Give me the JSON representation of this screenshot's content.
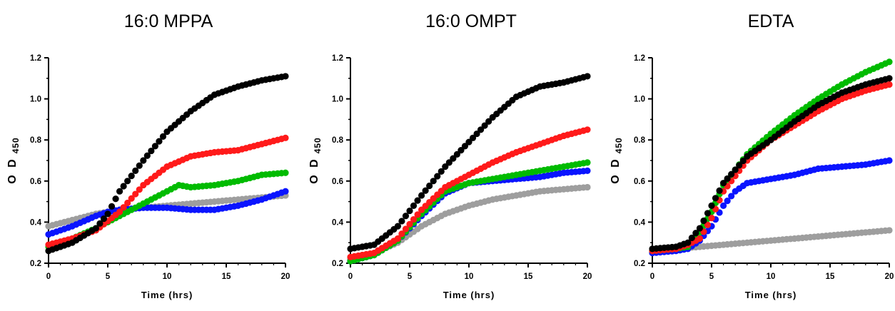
{
  "chart_data": [
    {
      "type": "scatter",
      "title": "16:0 MPPA",
      "xlabel": "Time (hrs)",
      "ylabel": {
        "main": "O D",
        "sub": "450"
      },
      "xlim": [
        0,
        20
      ],
      "ylim": [
        0.2,
        1.2
      ],
      "xticks": [
        "0",
        "5",
        "10",
        "15",
        "20"
      ],
      "yticks": [
        "0.2",
        "0.4",
        "0.6",
        "0.8",
        "1.0",
        "1.2"
      ],
      "series": [
        {
          "color": "#9e9e9e",
          "points": [
            [
              0,
              0.38
            ],
            [
              2,
              0.41
            ],
            [
              4,
              0.44
            ],
            [
              6,
              0.46
            ],
            [
              8,
              0.47
            ],
            [
              10,
              0.48
            ],
            [
              12,
              0.49
            ],
            [
              14,
              0.5
            ],
            [
              16,
              0.51
            ],
            [
              18,
              0.52
            ],
            [
              20,
              0.53
            ]
          ]
        },
        {
          "color": "#0a14ff",
          "points": [
            [
              0,
              0.34
            ],
            [
              2,
              0.38
            ],
            [
              4,
              0.43
            ],
            [
              5,
              0.45
            ],
            [
              6,
              0.46
            ],
            [
              8,
              0.47
            ],
            [
              10,
              0.47
            ],
            [
              12,
              0.46
            ],
            [
              14,
              0.46
            ],
            [
              16,
              0.48
            ],
            [
              18,
              0.51
            ],
            [
              20,
              0.55
            ]
          ]
        },
        {
          "color": "#00bb00",
          "points": [
            [
              0,
              0.28
            ],
            [
              2,
              0.32
            ],
            [
              4,
              0.37
            ],
            [
              6,
              0.43
            ],
            [
              8,
              0.49
            ],
            [
              10,
              0.55
            ],
            [
              11,
              0.58
            ],
            [
              12,
              0.57
            ],
            [
              14,
              0.58
            ],
            [
              16,
              0.6
            ],
            [
              18,
              0.63
            ],
            [
              20,
              0.64
            ]
          ]
        },
        {
          "color": "#ff1a1a",
          "points": [
            [
              0,
              0.29
            ],
            [
              2,
              0.32
            ],
            [
              4,
              0.36
            ],
            [
              6,
              0.45
            ],
            [
              8,
              0.58
            ],
            [
              10,
              0.67
            ],
            [
              12,
              0.72
            ],
            [
              14,
              0.74
            ],
            [
              16,
              0.75
            ],
            [
              18,
              0.78
            ],
            [
              20,
              0.81
            ]
          ]
        },
        {
          "color": "#000000",
          "points": [
            [
              0,
              0.26
            ],
            [
              2,
              0.3
            ],
            [
              4,
              0.37
            ],
            [
              5,
              0.44
            ],
            [
              6,
              0.55
            ],
            [
              8,
              0.7
            ],
            [
              10,
              0.84
            ],
            [
              12,
              0.94
            ],
            [
              14,
              1.02
            ],
            [
              16,
              1.06
            ],
            [
              18,
              1.09
            ],
            [
              20,
              1.11
            ]
          ]
        }
      ]
    },
    {
      "type": "scatter",
      "title": "16:0 OMPT",
      "xlabel": "Time (hrs)",
      "ylabel": {
        "main": "O D",
        "sub": "450"
      },
      "xlim": [
        0,
        20
      ],
      "ylim": [
        0.2,
        1.2
      ],
      "xticks": [
        "0",
        "5",
        "10",
        "15",
        "20"
      ],
      "yticks": [
        "0.2",
        "0.4",
        "0.6",
        "0.8",
        "1.0",
        "1.2"
      ],
      "series": [
        {
          "color": "#9e9e9e",
          "points": [
            [
              0,
              0.22
            ],
            [
              2,
              0.25
            ],
            [
              4,
              0.3
            ],
            [
              6,
              0.38
            ],
            [
              8,
              0.44
            ],
            [
              10,
              0.48
            ],
            [
              12,
              0.51
            ],
            [
              14,
              0.53
            ],
            [
              16,
              0.55
            ],
            [
              18,
              0.56
            ],
            [
              20,
              0.57
            ]
          ]
        },
        {
          "color": "#0a14ff",
          "points": [
            [
              0,
              0.21
            ],
            [
              2,
              0.24
            ],
            [
              4,
              0.31
            ],
            [
              6,
              0.43
            ],
            [
              8,
              0.54
            ],
            [
              10,
              0.59
            ],
            [
              12,
              0.6
            ],
            [
              14,
              0.61
            ],
            [
              16,
              0.62
            ],
            [
              18,
              0.64
            ],
            [
              20,
              0.65
            ]
          ]
        },
        {
          "color": "#00bb00",
          "points": [
            [
              0,
              0.21
            ],
            [
              2,
              0.24
            ],
            [
              4,
              0.31
            ],
            [
              6,
              0.44
            ],
            [
              8,
              0.55
            ],
            [
              10,
              0.59
            ],
            [
              12,
              0.61
            ],
            [
              14,
              0.63
            ],
            [
              16,
              0.65
            ],
            [
              18,
              0.67
            ],
            [
              20,
              0.69
            ]
          ]
        },
        {
          "color": "#ff1a1a",
          "points": [
            [
              0,
              0.23
            ],
            [
              2,
              0.25
            ],
            [
              4,
              0.32
            ],
            [
              6,
              0.46
            ],
            [
              8,
              0.57
            ],
            [
              10,
              0.63
            ],
            [
              12,
              0.69
            ],
            [
              14,
              0.74
            ],
            [
              16,
              0.78
            ],
            [
              18,
              0.82
            ],
            [
              20,
              0.85
            ]
          ]
        },
        {
          "color": "#000000",
          "points": [
            [
              0,
              0.27
            ],
            [
              2,
              0.29
            ],
            [
              4,
              0.38
            ],
            [
              6,
              0.53
            ],
            [
              8,
              0.67
            ],
            [
              10,
              0.79
            ],
            [
              12,
              0.91
            ],
            [
              14,
              1.01
            ],
            [
              16,
              1.06
            ],
            [
              18,
              1.08
            ],
            [
              20,
              1.11
            ]
          ]
        }
      ]
    },
    {
      "type": "scatter",
      "title": "EDTA",
      "xlabel": "Time (hrs)",
      "ylabel": {
        "main": "O D",
        "sub": "450"
      },
      "xlim": [
        0,
        20
      ],
      "ylim": [
        0.2,
        1.2
      ],
      "xticks": [
        "0",
        "5",
        "10",
        "15",
        "20"
      ],
      "yticks": [
        "0.2",
        "0.4",
        "0.6",
        "0.8",
        "1.0",
        "1.2"
      ],
      "series": [
        {
          "color": "#9e9e9e",
          "points": [
            [
              0,
              0.26
            ],
            [
              2,
              0.27
            ],
            [
              4,
              0.28
            ],
            [
              6,
              0.29
            ],
            [
              8,
              0.3
            ],
            [
              10,
              0.31
            ],
            [
              12,
              0.32
            ],
            [
              14,
              0.33
            ],
            [
              16,
              0.34
            ],
            [
              18,
              0.35
            ],
            [
              20,
              0.36
            ]
          ]
        },
        {
          "color": "#0a14ff",
          "points": [
            [
              0,
              0.25
            ],
            [
              2,
              0.26
            ],
            [
              3,
              0.27
            ],
            [
              4,
              0.31
            ],
            [
              5,
              0.38
            ],
            [
              6,
              0.48
            ],
            [
              7,
              0.55
            ],
            [
              8,
              0.59
            ],
            [
              10,
              0.61
            ],
            [
              12,
              0.63
            ],
            [
              14,
              0.66
            ],
            [
              16,
              0.67
            ],
            [
              18,
              0.68
            ],
            [
              20,
              0.7
            ]
          ]
        },
        {
          "color": "#00bb00",
          "points": [
            [
              0,
              0.26
            ],
            [
              2,
              0.27
            ],
            [
              3,
              0.28
            ],
            [
              4,
              0.35
            ],
            [
              5,
              0.45
            ],
            [
              6,
              0.58
            ],
            [
              8,
              0.73
            ],
            [
              10,
              0.83
            ],
            [
              12,
              0.92
            ],
            [
              14,
              1.0
            ],
            [
              16,
              1.07
            ],
            [
              18,
              1.13
            ],
            [
              20,
              1.18
            ]
          ]
        },
        {
          "color": "#ff1a1a",
          "points": [
            [
              0,
              0.26
            ],
            [
              2,
              0.27
            ],
            [
              3,
              0.29
            ],
            [
              4,
              0.32
            ],
            [
              5,
              0.42
            ],
            [
              6,
              0.55
            ],
            [
              8,
              0.7
            ],
            [
              10,
              0.8
            ],
            [
              12,
              0.87
            ],
            [
              14,
              0.94
            ],
            [
              16,
              1.0
            ],
            [
              18,
              1.04
            ],
            [
              20,
              1.07
            ]
          ]
        },
        {
          "color": "#000000",
          "points": [
            [
              0,
              0.27
            ],
            [
              2,
              0.28
            ],
            [
              3,
              0.3
            ],
            [
              4,
              0.37
            ],
            [
              5,
              0.48
            ],
            [
              6,
              0.59
            ],
            [
              8,
              0.72
            ],
            [
              10,
              0.8
            ],
            [
              12,
              0.89
            ],
            [
              14,
              0.97
            ],
            [
              16,
              1.03
            ],
            [
              18,
              1.07
            ],
            [
              20,
              1.1
            ]
          ]
        }
      ]
    }
  ]
}
